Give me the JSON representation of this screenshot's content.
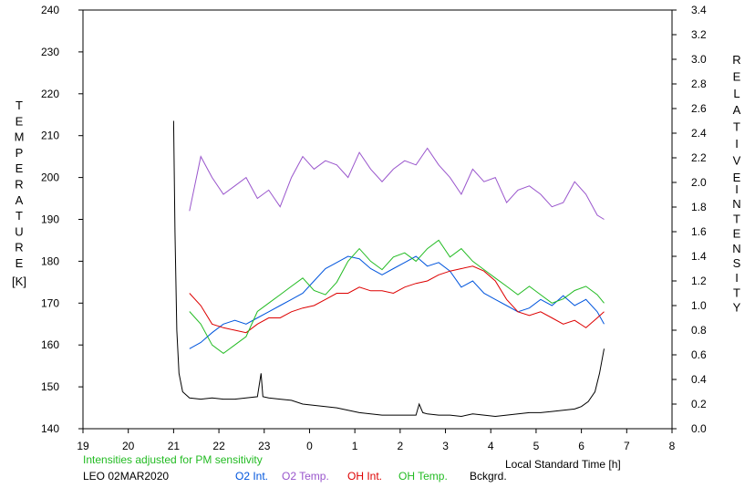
{
  "chart_data": {
    "type": "line",
    "xlabel": "Local Standard Time [h]",
    "x_ticks": [
      "19",
      "20",
      "21",
      "22",
      "23",
      "0",
      "1",
      "2",
      "3",
      "4",
      "5",
      "6",
      "7",
      "8"
    ],
    "left_axis": {
      "label": "TEMPERATURE [K]",
      "label_letters": [
        "T",
        "E",
        "M",
        "P",
        "E",
        "R",
        "A",
        "T",
        "U",
        "R",
        "E"
      ],
      "unit": "[K]",
      "range": [
        140,
        240
      ],
      "ticks": [
        140,
        150,
        160,
        170,
        180,
        190,
        200,
        210,
        220,
        230,
        240
      ]
    },
    "right_axis": {
      "label_letters_1": [
        "R",
        "E",
        "L",
        "A",
        "T",
        "I",
        "V",
        "E"
      ],
      "label_letters_2": [
        "I",
        "N",
        "T",
        "E",
        "N",
        "S",
        "I",
        "T",
        "Y"
      ],
      "range": [
        0.0,
        3.4
      ],
      "ticks": [
        "0.0",
        "0.2",
        "0.4",
        "0.6",
        "0.8",
        "1.0",
        "1.2",
        "1.4",
        "1.6",
        "1.8",
        "2.0",
        "2.2",
        "2.4",
        "2.6",
        "2.8",
        "3.0",
        "3.2",
        "3.4"
      ]
    },
    "grid": false,
    "note": "Intensities adjusted for PM sensitivity",
    "station": "LEO 02MAR2020",
    "series": [
      {
        "name": "O2 Int.",
        "color": "#0055dd",
        "axis": "right",
        "x": [
          21.35,
          21.6,
          21.85,
          22.1,
          22.35,
          22.6,
          22.85,
          23.1,
          23.35,
          23.6,
          23.85,
          24.1,
          24.35,
          24.6,
          24.85,
          25.1,
          25.35,
          25.6,
          25.85,
          26.1,
          26.35,
          26.6,
          26.85,
          27.1,
          27.35,
          27.6,
          27.85,
          28.1,
          28.35,
          28.6,
          28.85,
          29.1,
          29.35,
          29.6,
          29.85,
          30.1,
          30.35,
          30.5
        ],
        "y": [
          0.65,
          0.7,
          0.78,
          0.85,
          0.88,
          0.85,
          0.9,
          0.95,
          1.0,
          1.05,
          1.1,
          1.2,
          1.3,
          1.35,
          1.4,
          1.38,
          1.3,
          1.25,
          1.3,
          1.35,
          1.4,
          1.32,
          1.35,
          1.28,
          1.15,
          1.2,
          1.1,
          1.05,
          1.0,
          0.95,
          0.98,
          1.05,
          1.0,
          1.08,
          1.0,
          1.05,
          0.95,
          0.85
        ]
      },
      {
        "name": "O2 Temp.",
        "color": "#9955cc",
        "axis": "left",
        "x": [
          21.35,
          21.6,
          21.85,
          22.1,
          22.35,
          22.6,
          22.85,
          23.1,
          23.35,
          23.6,
          23.85,
          24.1,
          24.35,
          24.6,
          24.85,
          25.1,
          25.35,
          25.6,
          25.85,
          26.1,
          26.35,
          26.6,
          26.85,
          27.1,
          27.35,
          27.6,
          27.85,
          28.1,
          28.35,
          28.6,
          28.85,
          29.1,
          29.35,
          29.6,
          29.85,
          30.1,
          30.35,
          30.5
        ],
        "y": [
          192,
          205,
          200,
          196,
          198,
          200,
          195,
          197,
          193,
          200,
          205,
          202,
          204,
          203,
          200,
          206,
          202,
          199,
          202,
          204,
          203,
          207,
          203,
          200,
          196,
          202,
          199,
          200,
          194,
          197,
          198,
          196,
          193,
          194,
          199,
          196,
          191,
          190
        ]
      },
      {
        "name": "OH Int.",
        "color": "#dd0000",
        "axis": "right",
        "x": [
          21.35,
          21.6,
          21.85,
          22.1,
          22.35,
          22.6,
          22.85,
          23.1,
          23.35,
          23.6,
          23.85,
          24.1,
          24.35,
          24.6,
          24.85,
          25.1,
          25.35,
          25.6,
          25.85,
          26.1,
          26.35,
          26.6,
          26.85,
          27.1,
          27.35,
          27.6,
          27.85,
          28.1,
          28.35,
          28.6,
          28.85,
          29.1,
          29.35,
          29.6,
          29.85,
          30.1,
          30.35,
          30.5
        ],
        "y": [
          1.1,
          1.0,
          0.85,
          0.82,
          0.8,
          0.78,
          0.85,
          0.9,
          0.9,
          0.95,
          0.98,
          1.0,
          1.05,
          1.1,
          1.1,
          1.15,
          1.12,
          1.12,
          1.1,
          1.15,
          1.18,
          1.2,
          1.25,
          1.28,
          1.3,
          1.32,
          1.28,
          1.2,
          1.05,
          0.95,
          0.92,
          0.95,
          0.9,
          0.85,
          0.88,
          0.82,
          0.9,
          0.95
        ]
      },
      {
        "name": "OH Temp.",
        "color": "#22bb22",
        "axis": "left",
        "x": [
          21.35,
          21.6,
          21.85,
          22.1,
          22.35,
          22.6,
          22.85,
          23.1,
          23.35,
          23.6,
          23.85,
          24.1,
          24.35,
          24.6,
          24.85,
          25.1,
          25.35,
          25.6,
          25.85,
          26.1,
          26.35,
          26.6,
          26.85,
          27.1,
          27.35,
          27.6,
          27.85,
          28.1,
          28.35,
          28.6,
          28.85,
          29.1,
          29.35,
          29.6,
          29.85,
          30.1,
          30.35,
          30.5
        ],
        "y": [
          168,
          165,
          160,
          158,
          160,
          162,
          168,
          170,
          172,
          174,
          176,
          173,
          172,
          175,
          180,
          183,
          180,
          178,
          181,
          182,
          180,
          183,
          185,
          181,
          183,
          180,
          178,
          176,
          174,
          172,
          174,
          172,
          170,
          171,
          173,
          174,
          172,
          170
        ]
      },
      {
        "name": "Bckgrd.",
        "color": "#000000",
        "axis": "right",
        "x": [
          21.0,
          21.03,
          21.07,
          21.12,
          21.2,
          21.35,
          21.6,
          21.85,
          22.1,
          22.35,
          22.6,
          22.85,
          22.93,
          22.97,
          23.1,
          23.35,
          23.6,
          23.85,
          24.1,
          24.35,
          24.6,
          24.85,
          25.1,
          25.35,
          25.6,
          25.85,
          26.1,
          26.35,
          26.42,
          26.5,
          26.6,
          26.85,
          27.1,
          27.35,
          27.6,
          27.85,
          28.1,
          28.35,
          28.6,
          28.85,
          29.1,
          29.35,
          29.6,
          29.85,
          30.0,
          30.15,
          30.3,
          30.4,
          30.5
        ],
        "y": [
          2.5,
          1.6,
          0.8,
          0.45,
          0.3,
          0.25,
          0.24,
          0.25,
          0.24,
          0.24,
          0.25,
          0.26,
          0.45,
          0.26,
          0.25,
          0.24,
          0.23,
          0.2,
          0.19,
          0.18,
          0.17,
          0.15,
          0.13,
          0.12,
          0.11,
          0.11,
          0.11,
          0.11,
          0.2,
          0.13,
          0.12,
          0.11,
          0.11,
          0.1,
          0.12,
          0.11,
          0.1,
          0.11,
          0.12,
          0.13,
          0.13,
          0.14,
          0.15,
          0.16,
          0.18,
          0.22,
          0.3,
          0.45,
          0.65
        ]
      }
    ]
  }
}
